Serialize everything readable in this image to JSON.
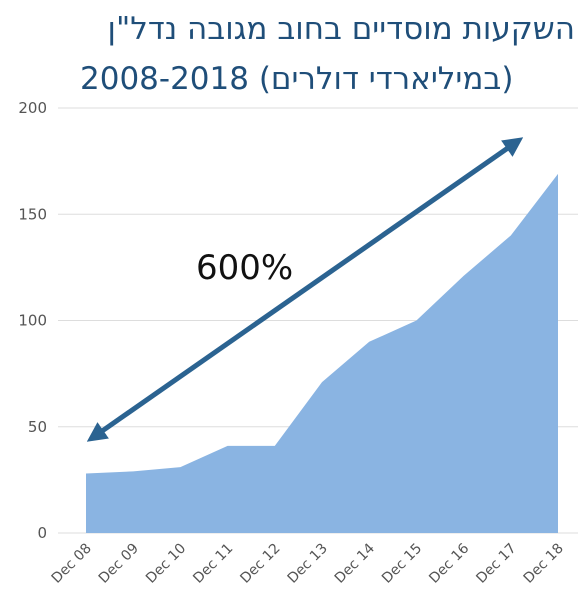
{
  "chart_data": {
    "type": "area",
    "title": "השקעות מוסדיים בחוב מגובה נדל\"ן",
    "subtitle": "2008-2018 (במיליארדי דולרים)",
    "categories": [
      "Dec 08",
      "Dec 09",
      "Dec 10",
      "Dec 11",
      "Dec 12",
      "Dec 13",
      "Dec 14",
      "Dec 15",
      "Dec 16",
      "Dec 17",
      "Dec 18"
    ],
    "values": [
      28,
      29,
      31,
      41,
      41,
      71,
      90,
      100,
      121,
      140,
      169
    ],
    "ylim": [
      0,
      200
    ],
    "yticks": [
      "0",
      "50",
      "100",
      "150",
      "200"
    ],
    "grid": true,
    "annotation": "600%",
    "colors": {
      "area": "#8ab4e2",
      "arrow": "#2b6391",
      "grid": "#dddddd",
      "title": "#1f4e79"
    }
  }
}
